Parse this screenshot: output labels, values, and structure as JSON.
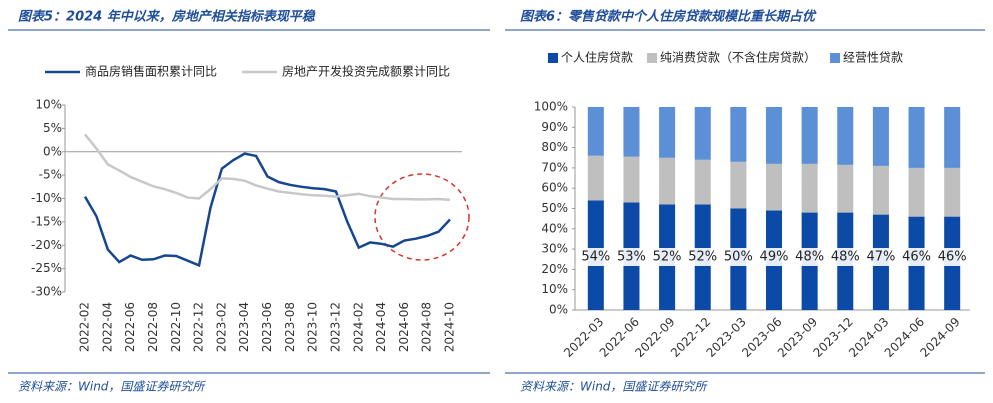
{
  "chart_data": [
    {
      "type": "line",
      "title": "图表5：2024 年中以来，房地产相关指标表现平稳",
      "source": "资料来源：Wind，国盛证券研究所",
      "categories": [
        "2022-02",
        null,
        "2022-04",
        null,
        "2022-06",
        null,
        "2022-08",
        null,
        "2022-10",
        null,
        "2022-12",
        null,
        "2023-02",
        null,
        "2023-04",
        null,
        "2023-06",
        null,
        "2023-08",
        null,
        "2023-10",
        null,
        "2023-12",
        null,
        "2024-02",
        null,
        "2024-04",
        null,
        "2024-06",
        null,
        "2024-08",
        null,
        "2024-10"
      ],
      "series": [
        {
          "name": "商品房销售面积累计同比",
          "color": "#16478f",
          "values": [
            -9.6,
            -13.8,
            -20.9,
            -23.6,
            -22.2,
            -23.1,
            -23.0,
            -22.2,
            -22.3,
            -23.3,
            -24.3,
            -12.0,
            -3.6,
            -1.8,
            -0.4,
            -0.9,
            -5.3,
            -6.5,
            -7.1,
            -7.5,
            -7.8,
            -8.0,
            -8.5,
            -15.0,
            -20.5,
            -19.4,
            -19.7,
            -20.3,
            -19.0,
            -18.6,
            -18.0,
            -17.1,
            -14.5
          ]
        },
        {
          "name": "房地产开发投资完成额累计同比",
          "color": "#c8c8c8",
          "values": [
            3.7,
            0.7,
            -2.7,
            -4.0,
            -5.4,
            -6.4,
            -7.4,
            -8.0,
            -8.8,
            -9.8,
            -10.0,
            -8.0,
            -5.7,
            -5.8,
            -6.2,
            -7.2,
            -7.9,
            -8.5,
            -8.8,
            -9.1,
            -9.3,
            -9.4,
            -9.6,
            -9.3,
            -9.0,
            -9.5,
            -9.8,
            -10.1,
            -10.1,
            -10.2,
            -10.2,
            -10.1,
            -10.3
          ]
        }
      ],
      "ylim": [
        -30,
        10
      ],
      "yticks": [
        {
          "value": -30,
          "label": "-30%"
        },
        {
          "value": -25,
          "label": "-25%"
        },
        {
          "value": -20,
          "label": "-20%"
        },
        {
          "value": -15,
          "label": "-15%"
        },
        {
          "value": -10,
          "label": "-10%"
        },
        {
          "value": -5,
          "label": "-5%"
        },
        {
          "value": 0,
          "label": "0%"
        },
        {
          "value": 5,
          "label": "5%"
        },
        {
          "value": 10,
          "label": "10%"
        }
      ]
    },
    {
      "type": "bar",
      "stacked": true,
      "title": "图表6：零售贷款中个人住房贷款规模比重长期占优",
      "source": "资料来源：Wind，国盛证券研究所",
      "categories": [
        "2022-03",
        "2022-06",
        "2022-09",
        "2022-12",
        "2023-03",
        "2023-06",
        "2023-09",
        "2023-12",
        "2024-03",
        "2024-06",
        "2024-09"
      ],
      "series": [
        {
          "name": "个人住房贷款",
          "color": "#0b4aa6",
          "values": [
            54,
            53,
            52,
            52,
            50,
            49,
            48,
            48,
            47,
            46,
            46
          ],
          "value_labels": [
            "54%",
            "53%",
            "52%",
            "52%",
            "50%",
            "49%",
            "48%",
            "48%",
            "47%",
            "46%",
            "46%"
          ]
        },
        {
          "name": "纯消费贷款（不含住房贷款）",
          "color": "#bfbfbf",
          "values": [
            22,
            22.5,
            23,
            22,
            23,
            23,
            24,
            23.5,
            24,
            24,
            24
          ]
        },
        {
          "name": "经营性贷款",
          "color": "#5b8fd6",
          "values": [
            24,
            24.5,
            25,
            26,
            27,
            28,
            28,
            28.5,
            29,
            30,
            30
          ]
        }
      ],
      "ylim": [
        0,
        100
      ],
      "yticks": [
        {
          "value": 0,
          "label": "0%"
        },
        {
          "value": 10,
          "label": "10%"
        },
        {
          "value": 20,
          "label": "20%"
        },
        {
          "value": 30,
          "label": "30%"
        },
        {
          "value": 40,
          "label": "40%"
        },
        {
          "value": 50,
          "label": "50%"
        },
        {
          "value": 60,
          "label": "60%"
        },
        {
          "value": 70,
          "label": "70%"
        },
        {
          "value": 80,
          "label": "80%"
        },
        {
          "value": 90,
          "label": "90%"
        },
        {
          "value": 100,
          "label": "100%"
        }
      ]
    }
  ]
}
